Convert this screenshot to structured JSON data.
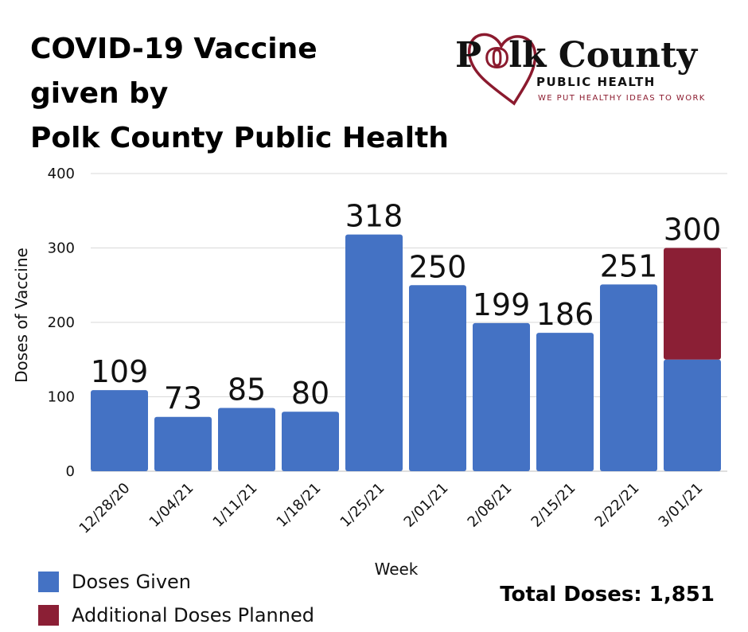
{
  "title": {
    "line1": "COVID-19 Vaccine",
    "line2": "given by",
    "line3": "Polk County Public Health"
  },
  "logo": {
    "name_before": "P",
    "name_after": "lk County",
    "subtitle": "PUBLIC HEALTH",
    "tagline": "WE PUT HEALTHY IDEAS TO WORK",
    "heart_color": "#8b1a2e"
  },
  "chart_data": {
    "type": "bar",
    "stacked": true,
    "categories": [
      "12/28/20",
      "1/04/21",
      "1/11/21",
      "1/18/21",
      "1/25/21",
      "2/01/21",
      "2/08/21",
      "2/15/21",
      "2/22/21",
      "3/01/21"
    ],
    "series": [
      {
        "name": "Doses Given",
        "color": "#4472c4",
        "values": [
          109,
          73,
          85,
          80,
          318,
          250,
          199,
          186,
          251,
          150
        ]
      },
      {
        "name": "Additional Doses Planned",
        "color": "#8b1f35",
        "values": [
          0,
          0,
          0,
          0,
          0,
          0,
          0,
          0,
          0,
          150
        ]
      }
    ],
    "data_labels": [
      "109",
      "73",
      "85",
      "80",
      "318",
      "250",
      "199",
      "186",
      "251",
      "300"
    ],
    "xlabel": "Week",
    "ylabel": "Doses of Vaccine",
    "ylim": [
      0,
      400
    ],
    "yticks": [
      0,
      100,
      200,
      300,
      400
    ],
    "grid": true,
    "legend_position": "bottom-left"
  },
  "total": "Total Doses: 1,851"
}
